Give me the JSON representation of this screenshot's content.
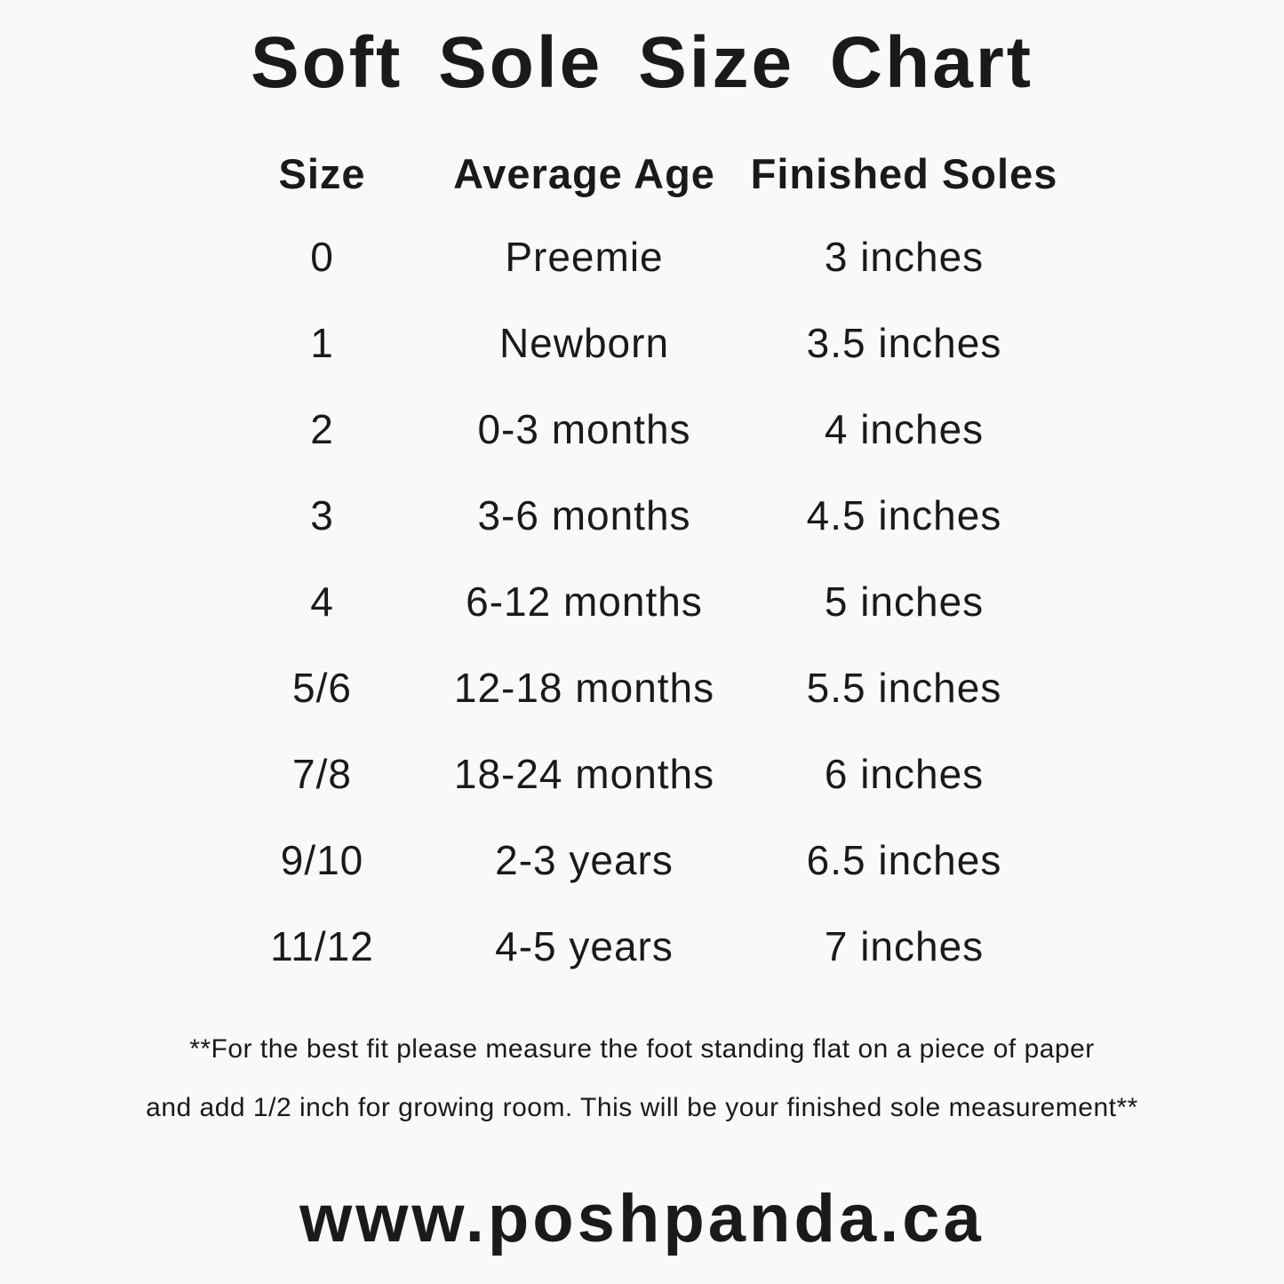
{
  "title": "Soft Sole Size Chart",
  "chart_data": {
    "type": "table",
    "title": "Soft Sole Size Chart",
    "columns": [
      "Size",
      "Average Age",
      "Finished Soles"
    ],
    "rows": [
      [
        "0",
        "Preemie",
        "3 inches"
      ],
      [
        "1",
        "Newborn",
        "3.5 inches"
      ],
      [
        "2",
        "0-3 months",
        "4 inches"
      ],
      [
        "3",
        "3-6 months",
        "4.5 inches"
      ],
      [
        "4",
        "6-12 months",
        "5 inches"
      ],
      [
        "5/6",
        "12-18 months",
        "5.5 inches"
      ],
      [
        "7/8",
        "18-24 months",
        "6 inches"
      ],
      [
        "9/10",
        "2-3 years",
        "6.5 inches"
      ],
      [
        "11/12",
        "4-5 years",
        "7 inches"
      ]
    ],
    "finished_soles_inches": [
      3,
      3.5,
      4,
      4.5,
      5,
      5.5,
      6,
      6.5,
      7
    ]
  },
  "note": {
    "line1": "**For the best fit please measure the foot standing flat on a piece of paper",
    "line2": "and add 1/2 inch for growing room. This will be your finished sole measurement**"
  },
  "website": "www.poshpanda.ca",
  "colors": {
    "background": "#f9f9f9",
    "text": "#1a1a1a"
  }
}
